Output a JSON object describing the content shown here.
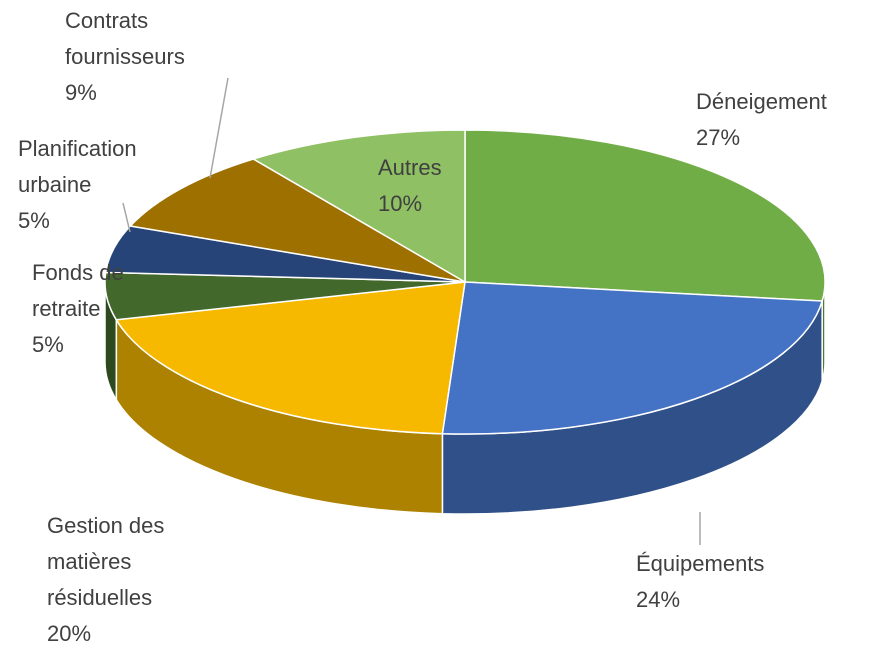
{
  "chart_data": {
    "type": "pie3d",
    "categories": [
      "Déneigement",
      "Équipements",
      "Gestion des matières résiduelles",
      "Fonds de retraite",
      "Planification urbaine",
      "Contrats fournisseurs",
      "Autres"
    ],
    "values": [
      27,
      24,
      20,
      5,
      5,
      9,
      10
    ],
    "value_labels": [
      "27%",
      "24%",
      "20%",
      "5%",
      "5%",
      "9%",
      "10%"
    ],
    "colors": [
      "#70ad47",
      "#4472c4",
      "#f6b900",
      "#43682b",
      "#264478",
      "#9e7000",
      "#8fc063"
    ]
  }
}
